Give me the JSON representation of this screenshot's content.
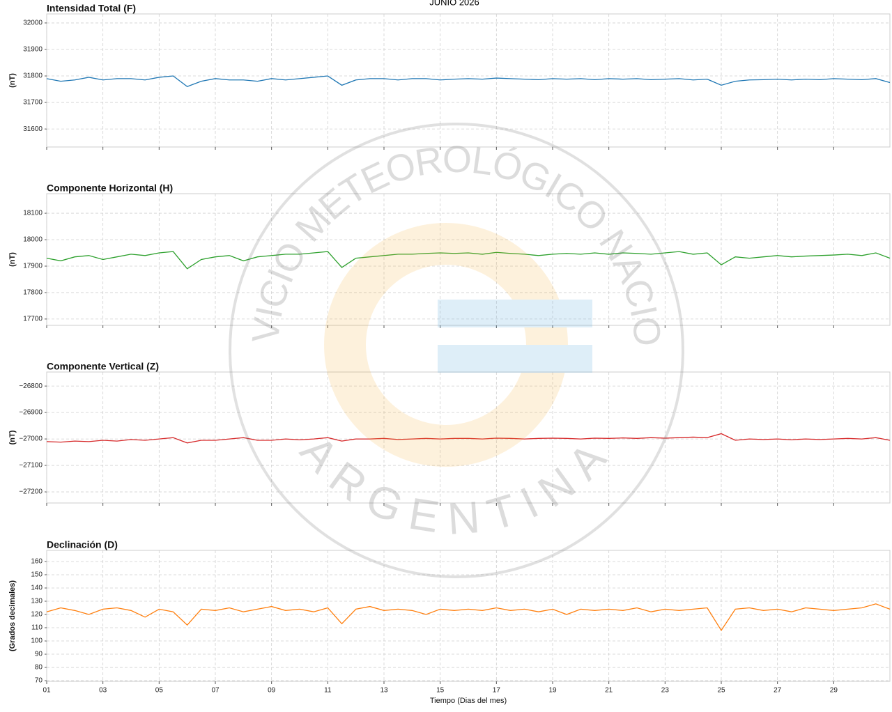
{
  "title": "JUNIO 2026",
  "watermark": {
    "top": "SERVICIO METEOROLÓGICO NACIONAL",
    "bottom": "ARGENTINA"
  },
  "chart_data": [
    {
      "type": "line",
      "title": "Intensidad Total (F)",
      "ylabel": "(nT)",
      "grid": true,
      "x": [
        1,
        1.5,
        2,
        2.5,
        3,
        3.5,
        4,
        4.5,
        5,
        5.5,
        6,
        6.5,
        7,
        7.5,
        8,
        8.5,
        9,
        9.5,
        10,
        10.5,
        11,
        11.5,
        12,
        12.5,
        13,
        13.5,
        14,
        14.5,
        15,
        15.5,
        16,
        16.5,
        17,
        17.5,
        18,
        18.5,
        19,
        19.5,
        20,
        20.5,
        21,
        21.5,
        22,
        22.5,
        23,
        23.5,
        24,
        24.5,
        25,
        25.5,
        26,
        26.5,
        27,
        27.5,
        28,
        28.5,
        29,
        29.5,
        30,
        30.5,
        31
      ],
      "xlim": [
        1,
        31
      ],
      "ylim": [
        31532,
        32034
      ],
      "yticks": [
        31600,
        31700,
        31800,
        31900,
        32000
      ],
      "series": [
        {
          "color": "#1f77b4",
          "values": [
            31790,
            31780,
            31785,
            31795,
            31785,
            31790,
            31790,
            31785,
            31795,
            31800,
            31760,
            31780,
            31790,
            31785,
            31785,
            31780,
            31790,
            31785,
            31790,
            31795,
            31800,
            31765,
            31785,
            31790,
            31790,
            31785,
            31790,
            31790,
            31785,
            31788,
            31790,
            31788,
            31792,
            31790,
            31788,
            31786,
            31790,
            31788,
            31790,
            31786,
            31790,
            31788,
            31790,
            31786,
            31788,
            31790,
            31785,
            31788,
            31765,
            31780,
            31785,
            31786,
            31788,
            31785,
            31788,
            31786,
            31790,
            31788,
            31786,
            31790,
            31775
          ]
        }
      ]
    },
    {
      "type": "line",
      "title": "Componente Horizontal (H)",
      "ylabel": "(nT)",
      "grid": true,
      "x": [
        1,
        1.5,
        2,
        2.5,
        3,
        3.5,
        4,
        4.5,
        5,
        5.5,
        6,
        6.5,
        7,
        7.5,
        8,
        8.5,
        9,
        9.5,
        10,
        10.5,
        11,
        11.5,
        12,
        12.5,
        13,
        13.5,
        14,
        14.5,
        15,
        15.5,
        16,
        16.5,
        17,
        17.5,
        18,
        18.5,
        19,
        19.5,
        20,
        20.5,
        21,
        21.5,
        22,
        22.5,
        23,
        23.5,
        24,
        24.5,
        25,
        25.5,
        26,
        26.5,
        27,
        27.5,
        28,
        28.5,
        29,
        29.5,
        30,
        30.5,
        31
      ],
      "xlim": [
        1,
        31
      ],
      "ylim": [
        17676,
        18174
      ],
      "yticks": [
        17700,
        17800,
        17900,
        18000,
        18100
      ],
      "series": [
        {
          "color": "#2ca02c",
          "values": [
            17930,
            17920,
            17935,
            17940,
            17925,
            17935,
            17945,
            17940,
            17950,
            17955,
            17890,
            17925,
            17935,
            17940,
            17920,
            17935,
            17940,
            17945,
            17945,
            17950,
            17955,
            17895,
            17930,
            17935,
            17940,
            17945,
            17945,
            17948,
            17950,
            17948,
            17950,
            17945,
            17952,
            17948,
            17945,
            17940,
            17945,
            17948,
            17945,
            17950,
            17945,
            17950,
            17948,
            17945,
            17950,
            17955,
            17945,
            17950,
            17905,
            17935,
            17930,
            17935,
            17940,
            17935,
            17938,
            17940,
            17942,
            17945,
            17940,
            17950,
            17930
          ]
        }
      ]
    },
    {
      "type": "line",
      "title": "Componente Vertical (Z)",
      "ylabel": "(nT)",
      "grid": true,
      "x": [
        1,
        1.5,
        2,
        2.5,
        3,
        3.5,
        4,
        4.5,
        5,
        5.5,
        6,
        6.5,
        7,
        7.5,
        8,
        8.5,
        9,
        9.5,
        10,
        10.5,
        11,
        11.5,
        12,
        12.5,
        13,
        13.5,
        14,
        14.5,
        15,
        15.5,
        16,
        16.5,
        17,
        17.5,
        18,
        18.5,
        19,
        19.5,
        20,
        20.5,
        21,
        21.5,
        22,
        22.5,
        23,
        23.5,
        24,
        24.5,
        25,
        25.5,
        26,
        26.5,
        27,
        27.5,
        28,
        28.5,
        29,
        29.5,
        30,
        30.5,
        31
      ],
      "xlim": [
        1,
        31
      ],
      "ylim": [
        -27242,
        -26747
      ],
      "yticks": [
        {
          "value": -27200,
          "label": "−27200"
        },
        {
          "value": -27100,
          "label": "−27100"
        },
        {
          "value": -27000,
          "label": "−27000"
        },
        {
          "value": -26900,
          "label": "−26900"
        },
        {
          "value": -26800,
          "label": "−26800"
        }
      ],
      "series": [
        {
          "color": "#d62728",
          "values": [
            -27010,
            -27012,
            -27008,
            -27010,
            -27005,
            -27008,
            -27002,
            -27005,
            -27000,
            -26995,
            -27015,
            -27005,
            -27005,
            -27000,
            -26995,
            -27005,
            -27005,
            -27000,
            -27003,
            -27000,
            -26995,
            -27008,
            -27000,
            -27000,
            -26998,
            -27002,
            -27000,
            -26998,
            -27000,
            -26998,
            -26998,
            -27000,
            -26997,
            -26998,
            -27000,
            -26998,
            -26997,
            -26998,
            -27000,
            -26997,
            -26998,
            -26996,
            -26998,
            -26995,
            -26997,
            -26995,
            -26993,
            -26995,
            -26980,
            -27005,
            -27000,
            -27002,
            -27000,
            -27003,
            -27000,
            -27002,
            -27000,
            -26998,
            -27000,
            -26995,
            -27005
          ]
        }
      ]
    },
    {
      "type": "line",
      "title": "Declinación (D)",
      "ylabel": "(Grados decimales)",
      "xlabel": "Tiempo (Dias del mes)",
      "grid": true,
      "x": [
        1,
        1.5,
        2,
        2.5,
        3,
        3.5,
        4,
        4.5,
        5,
        5.5,
        6,
        6.5,
        7,
        7.5,
        8,
        8.5,
        9,
        9.5,
        10,
        10.5,
        11,
        11.5,
        12,
        12.5,
        13,
        13.5,
        14,
        14.5,
        15,
        15.5,
        16,
        16.5,
        17,
        17.5,
        18,
        18.5,
        19,
        19.5,
        20,
        20.5,
        21,
        21.5,
        22,
        22.5,
        23,
        23.5,
        24,
        24.5,
        25,
        25.5,
        26,
        26.5,
        27,
        27.5,
        28,
        28.5,
        29,
        29.5,
        30,
        30.5,
        31
      ],
      "xlim": [
        1,
        31
      ],
      "ylim": [
        69.5,
        168.4
      ],
      "xticks": [
        {
          "value": 1,
          "label": "01"
        },
        {
          "value": 3,
          "label": "03"
        },
        {
          "value": 5,
          "label": "05"
        },
        {
          "value": 7,
          "label": "07"
        },
        {
          "value": 9,
          "label": "09"
        },
        11,
        13,
        15,
        17,
        19,
        21,
        23,
        25,
        27,
        29
      ],
      "yticks": [
        70,
        80,
        90,
        100,
        110,
        120,
        130,
        140,
        150,
        160
      ],
      "series": [
        {
          "color": "#ff7f0e",
          "values": [
            122,
            125,
            123,
            120,
            124,
            125,
            123,
            118,
            124,
            122,
            112,
            124,
            123,
            125,
            122,
            124,
            126,
            123,
            124,
            122,
            125,
            113,
            124,
            126,
            123,
            124,
            123,
            120,
            124,
            123,
            124,
            123,
            125,
            123,
            124,
            122,
            124,
            120,
            124,
            123,
            124,
            123,
            125,
            122,
            124,
            123,
            124,
            125,
            108,
            124,
            125,
            123,
            124,
            122,
            125,
            124,
            123,
            124,
            125,
            128,
            124
          ]
        }
      ]
    }
  ]
}
